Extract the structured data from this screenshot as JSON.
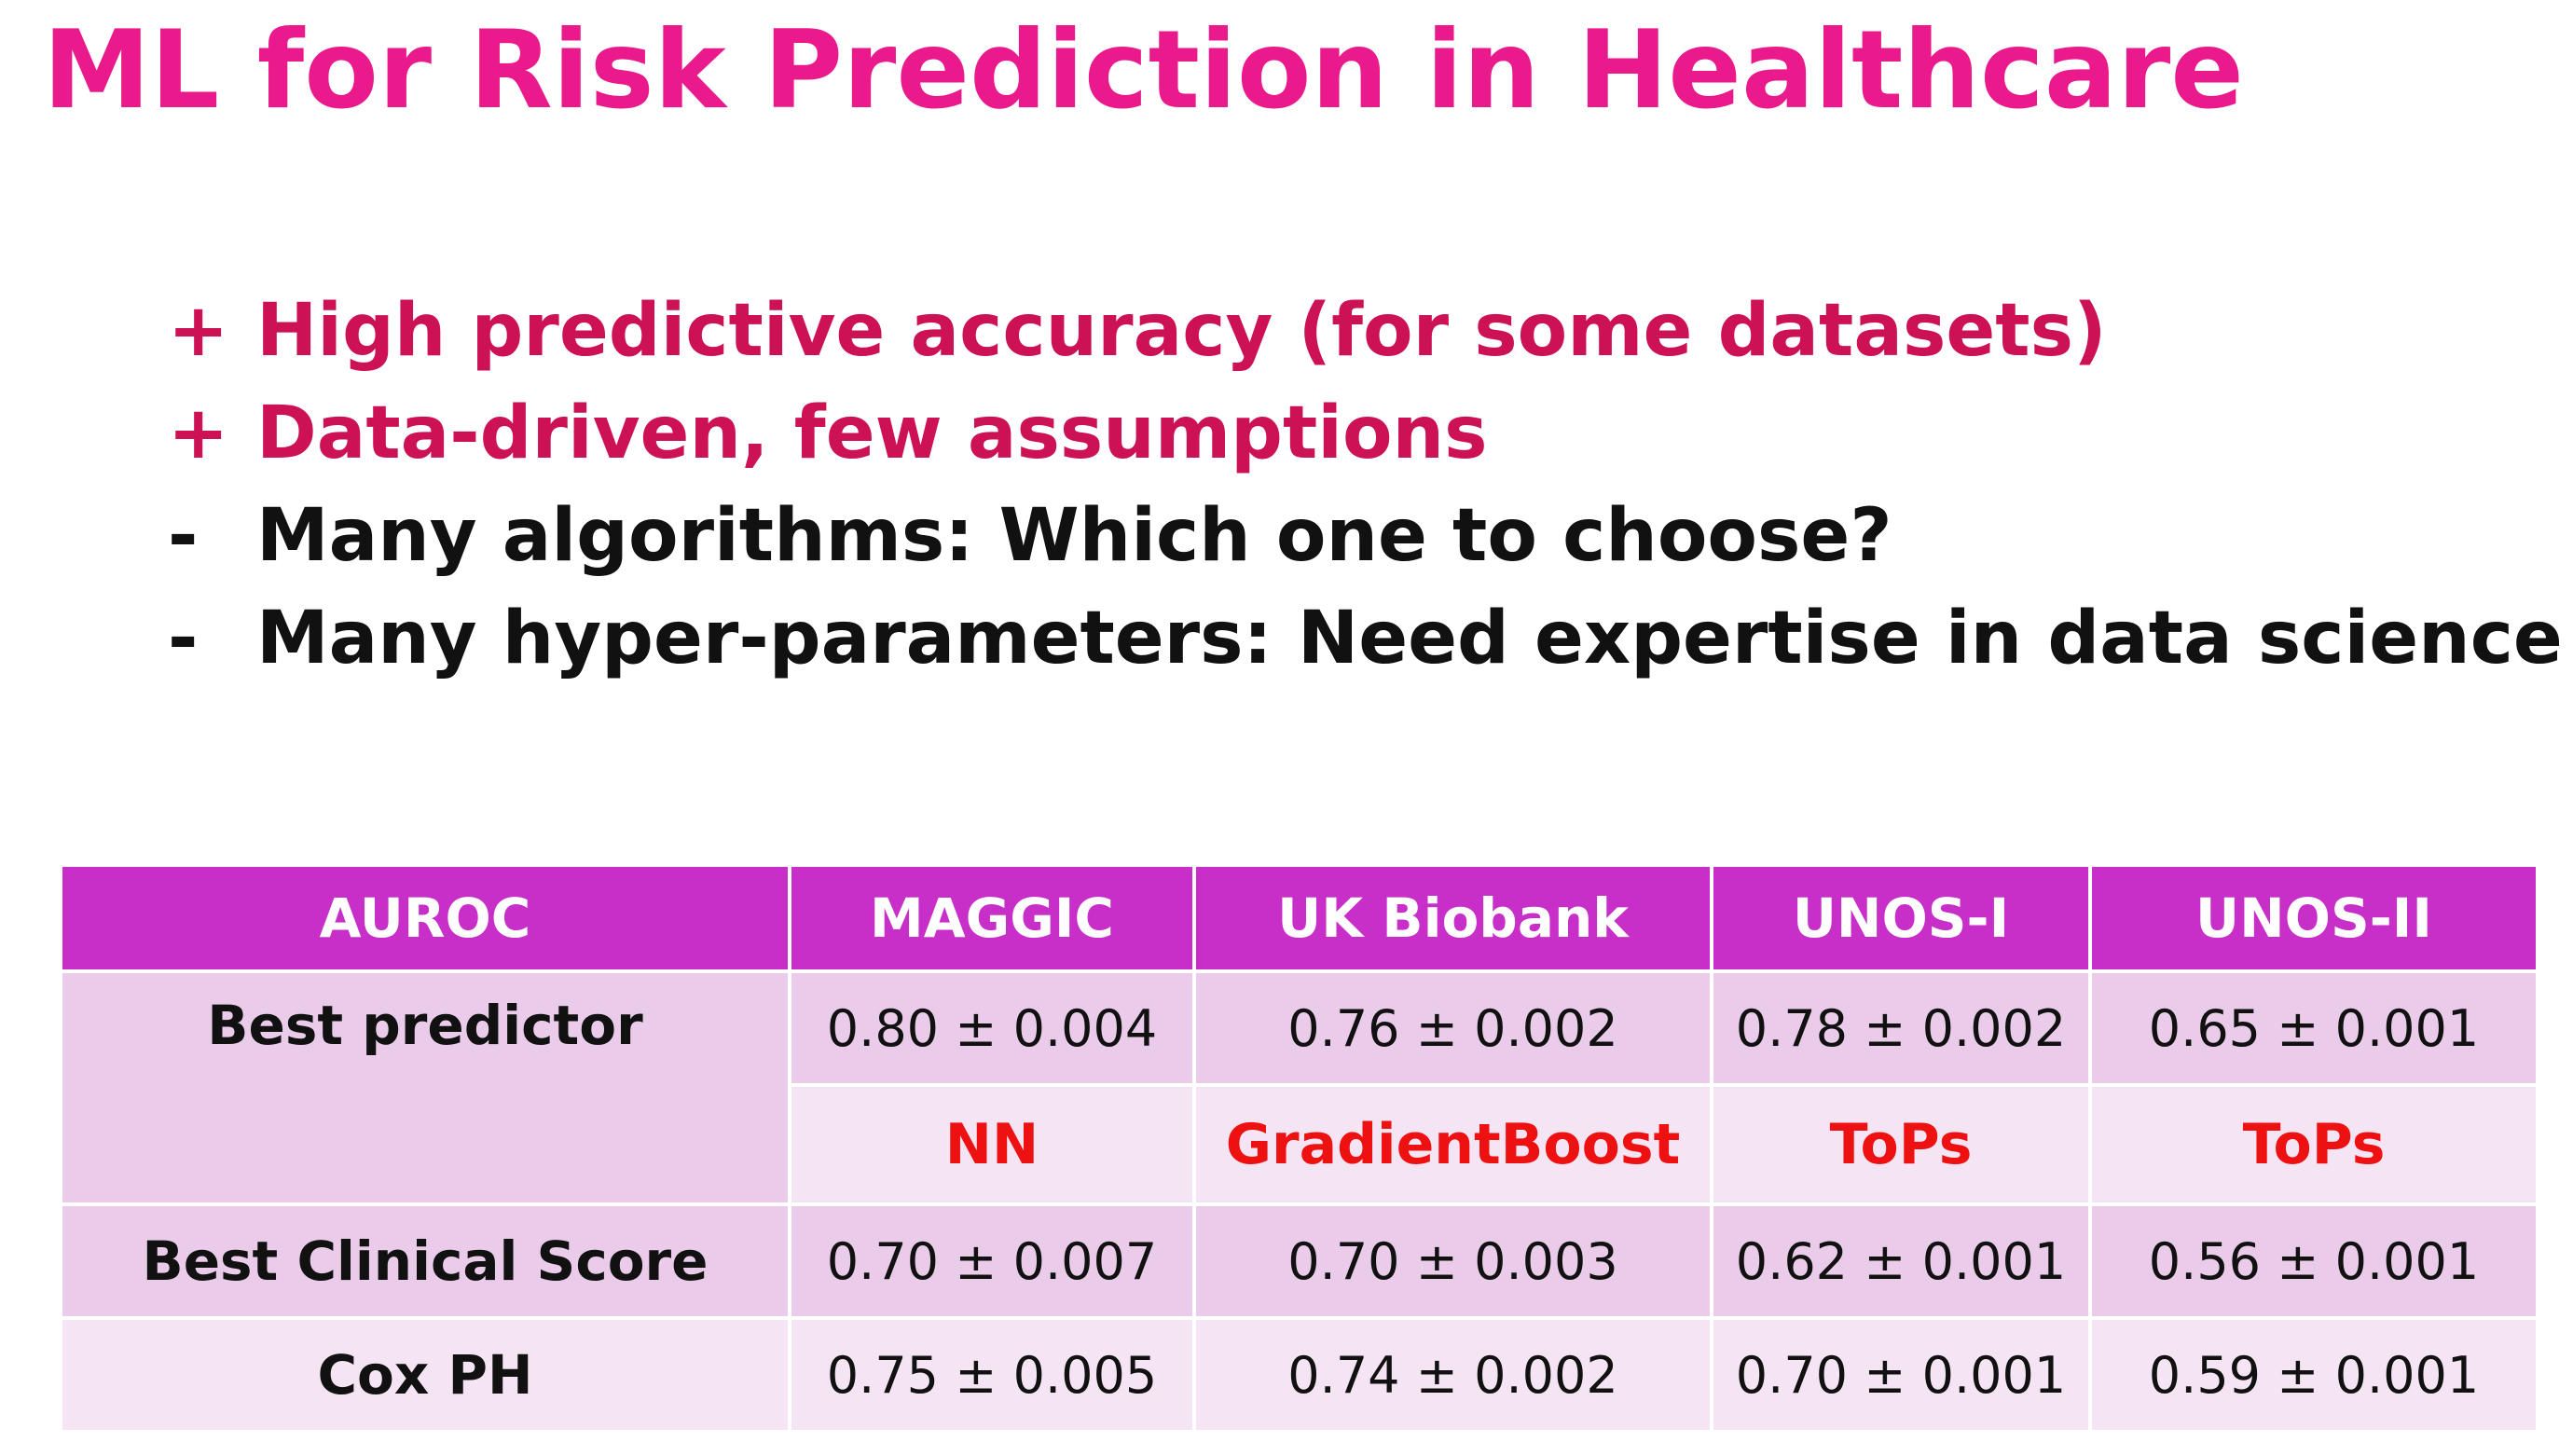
{
  "title": "ML for Risk Prediction in Healthcare",
  "bullets": [
    {
      "marker": "+",
      "text": "High predictive accuracy (for some datasets)"
    },
    {
      "marker": "+",
      "text": "Data-driven, few assumptions"
    },
    {
      "marker": "-",
      "text": "Many algorithms: Which one to choose?"
    },
    {
      "marker": "-",
      "text": "Many hyper-parameters: Need expertise in data science"
    }
  ],
  "colors": {
    "title": "#ea1a8c",
    "pro_bullet": "#cc1155",
    "con_bullet": "#111111",
    "table_header": "#c72fc8",
    "row_dark": "#ebcbea",
    "row_light": "#f5e5f4",
    "algorithm_text": "#ee1111"
  },
  "table": {
    "header": [
      "AUROC",
      "MAGGIC",
      "UK Biobank",
      "UNOS-I",
      "UNOS-II"
    ],
    "best_predictor": {
      "label": "Best predictor",
      "values": [
        "0.80 ± 0.004",
        "0.76 ± 0.002",
        "0.78 ± 0.002",
        "0.65 ± 0.001"
      ],
      "algorithms": [
        "NN",
        "GradientBoost",
        "ToPs",
        "ToPs"
      ]
    },
    "best_clinical": {
      "label": "Best Clinical Score",
      "values": [
        "0.70 ± 0.007",
        "0.70 ± 0.003",
        "0.62 ± 0.001",
        "0.56 ± 0.001"
      ]
    },
    "cox_ph": {
      "label": "Cox PH",
      "values": [
        "0.75 ± 0.005",
        "0.74 ± 0.002",
        "0.70 ± 0.001",
        "0.59 ± 0.001"
      ]
    }
  }
}
